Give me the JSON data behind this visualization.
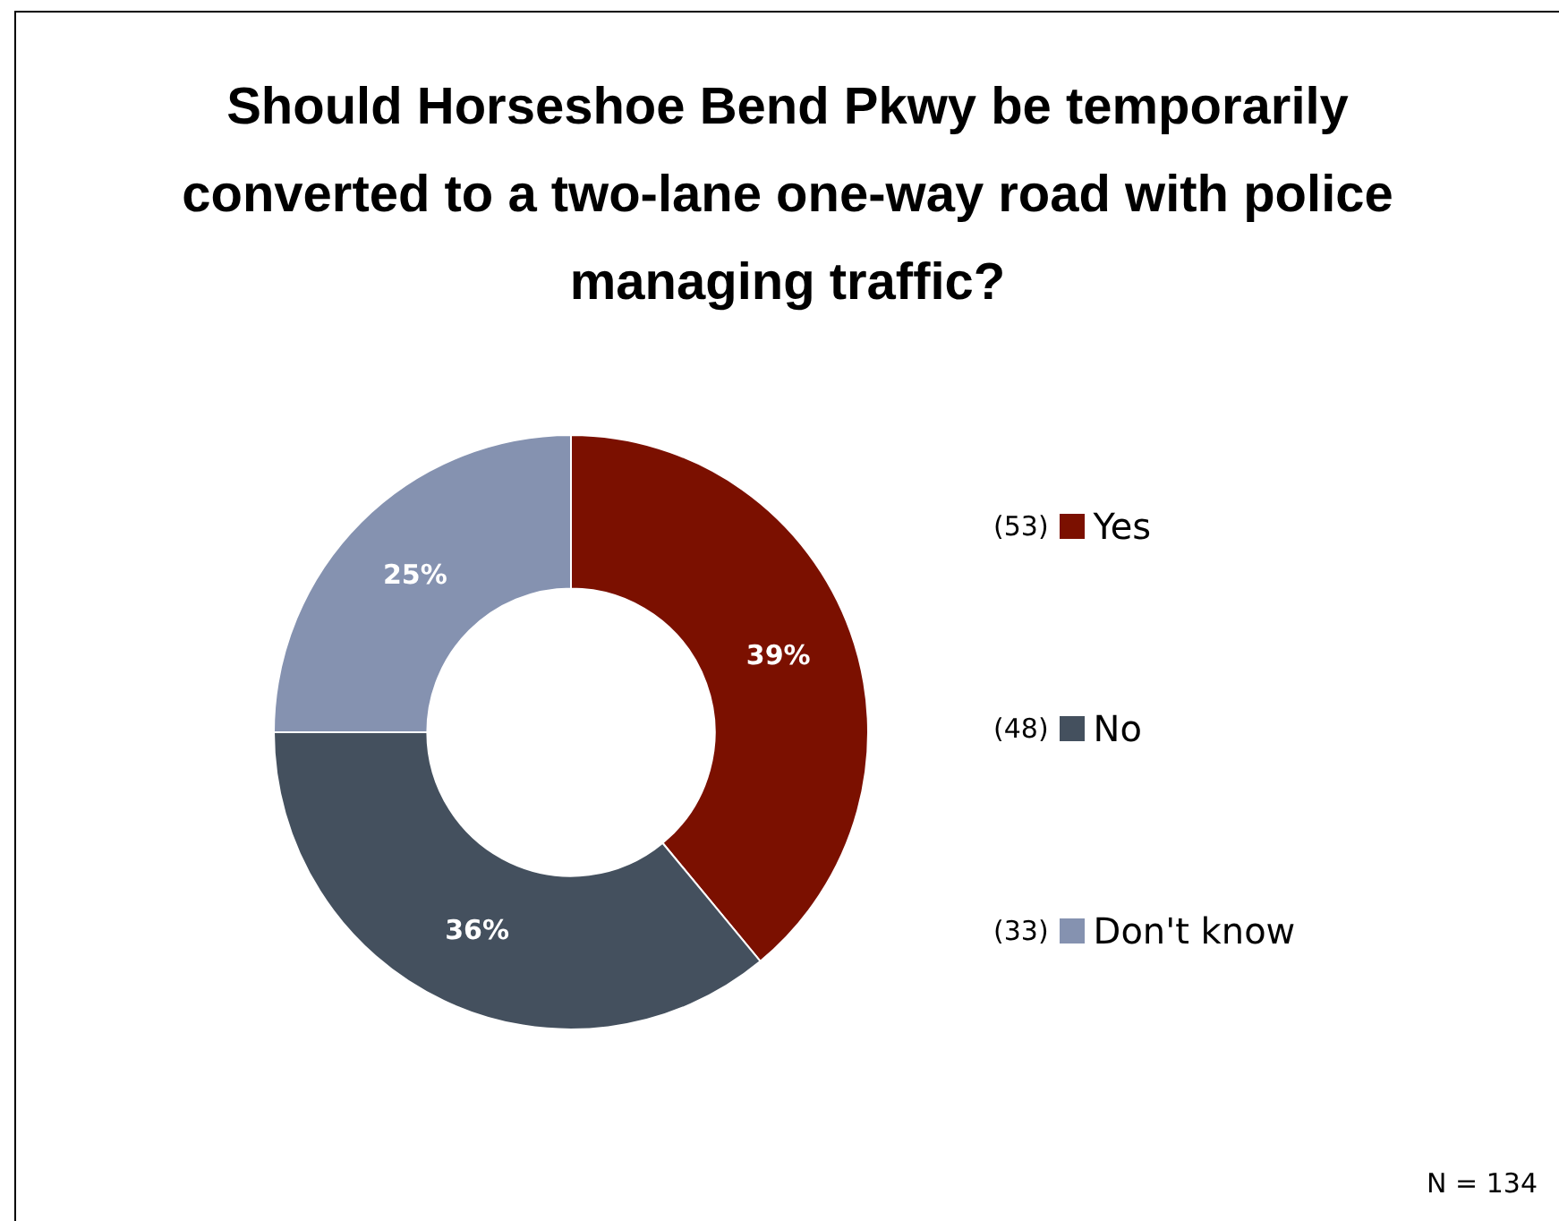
{
  "chart_data": {
    "type": "donut",
    "title": "Should Horseshoe Bend Pkwy be temporarily converted to a two-lane one-way road with police managing traffic?",
    "categories": [
      "Yes",
      "No",
      "Don't know"
    ],
    "values": [
      39,
      36,
      25
    ],
    "colors": [
      "#7b1000",
      "#44505e",
      "#8592b0"
    ],
    "value_labels": [
      "39%",
      "36%",
      "25%"
    ],
    "legend": "right",
    "annotations": [
      "(53)",
      "(48)",
      "(33)",
      "N = 134"
    ]
  }
}
